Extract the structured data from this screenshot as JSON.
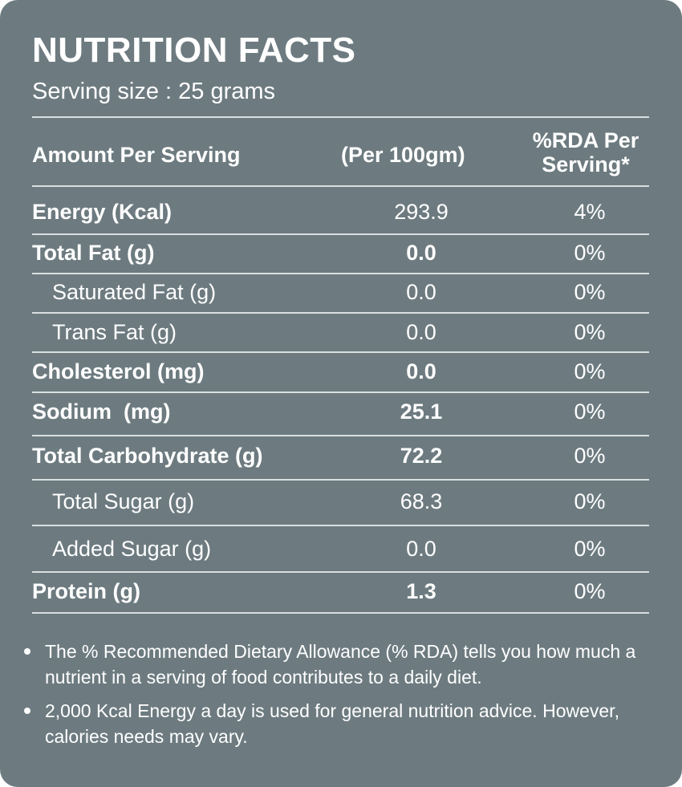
{
  "title": "NUTRITION FACTS",
  "serving_size": "Serving size : 25 grams",
  "header": {
    "amount": "Amount Per Serving",
    "per100": "(Per 100gm)",
    "rda_line1": "%RDA Per",
    "rda_line2": "Serving*"
  },
  "rows": [
    {
      "name": "Energy (Kcal)",
      "value": "293.9",
      "rda": "4%"
    },
    {
      "name": "Total Fat (g)",
      "value": "0.0",
      "rda": "0%"
    },
    {
      "name": "Saturated Fat (g)",
      "value": "0.0",
      "rda": "0%"
    },
    {
      "name": "Trans Fat (g)",
      "value": "0.0",
      "rda": "0%"
    },
    {
      "name": "Cholesterol (mg)",
      "value": "0.0",
      "rda": "0%"
    },
    {
      "name": "Sodium  (mg)",
      "value": "25.1",
      "rda": "0%"
    },
    {
      "name": "Total Carbohydrate (g)",
      "value": "72.2",
      "rda": "0%"
    },
    {
      "name": "Total Sugar (g)",
      "value": "68.3",
      "rda": "0%"
    },
    {
      "name": "Added Sugar (g)",
      "value": "0.0",
      "rda": "0%"
    },
    {
      "name": "Protein (g)",
      "value": "1.3",
      "rda": "0%"
    }
  ],
  "notes": [
    "The % Recommended Dietary Allowance (% RDA) tells you how much a nutrient in a serving of food contributes to a daily diet.",
    "2,000 Kcal Energy a day is used for general nutrition advice. However, calories needs may vary."
  ],
  "colors": {
    "background": "#6d7b80",
    "text": "#ffffff",
    "rule": "#d9dfe1"
  }
}
